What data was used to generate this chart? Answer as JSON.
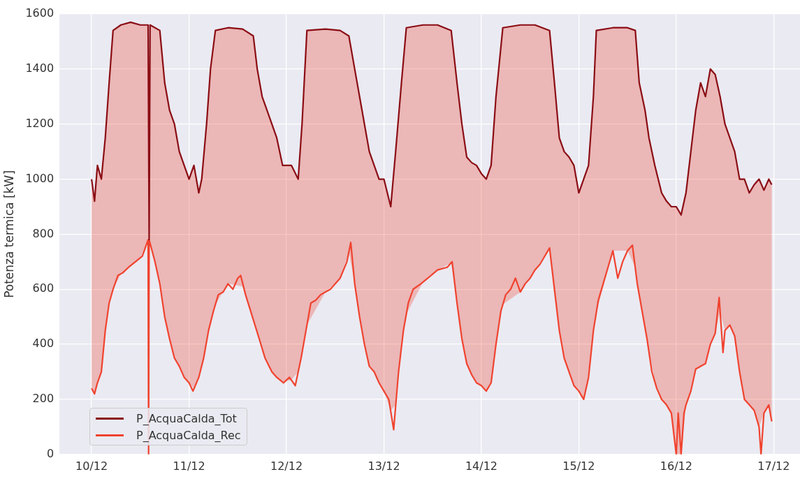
{
  "chart_data": {
    "type": "line",
    "ylabel": "Potenza termica [kW]",
    "xlim": [
      "--12-09T16:05",
      "--12-17T06:29"
    ],
    "ylim": [
      0,
      1600
    ],
    "xticks": [
      {
        "value": "--12-10",
        "label": "10/12"
      },
      {
        "value": "--12-11",
        "label": "11/12"
      },
      {
        "value": "--12-12",
        "label": "12/12"
      },
      {
        "value": "--12-13",
        "label": "13/12"
      },
      {
        "value": "--12-14",
        "label": "14/12"
      },
      {
        "value": "--12-15",
        "label": "15/12"
      },
      {
        "value": "--12-16",
        "label": "16/12"
      },
      {
        "value": "--12-17",
        "label": "17/12"
      }
    ],
    "yticks": [
      0,
      200,
      400,
      600,
      800,
      1000,
      1200,
      1400,
      1600
    ],
    "grid": true,
    "legend": "bottom left",
    "marker": "none",
    "line_style": "solid",
    "series": [
      {
        "name": "P_AcquaCalda_Tot",
        "color": "#8b0d14",
        "x": [
          "--12-10T00:00",
          "--12-10T00:43",
          "--12-10T01:26",
          "--12-10T02:24",
          "--12-10T03:22",
          "--12-10T04:19",
          "--12-10T05:17",
          "--12-10T07:12",
          "--12-10T09:36",
          "--12-10T12:00",
          "--12-10T13:55",
          "--12-10T14:10",
          "--12-10T14:24",
          "--12-10T16:48",
          "--12-10T18:00",
          "--12-10T19:12",
          "--12-10T20:24",
          "--12-10T21:36",
          "--12-10T22:48",
          "--12-11T00:00",
          "--12-11T01:12",
          "--12-11T02:24",
          "--12-11T03:07",
          "--12-11T04:19",
          "--12-11T05:17",
          "--12-11T06:29",
          "--12-11T09:36",
          "--12-11T13:12",
          "--12-11T15:50",
          "--12-11T16:48",
          "--12-11T18:00",
          "--12-11T19:12",
          "--12-11T20:24",
          "--12-11T21:36",
          "--12-11T23:02",
          "--12-12T01:12",
          "--12-12T02:53",
          "--12-12T03:50",
          "--12-12T05:02",
          "--12-12T09:36",
          "--12-12T13:12",
          "--12-12T15:22",
          "--12-12T16:48",
          "--12-12T18:00",
          "--12-12T19:12",
          "--12-12T20:24",
          "--12-12T21:36",
          "--12-12T22:48",
          "--12-13T00:00",
          "--12-13T01:41",
          "--12-13T02:53",
          "--12-13T04:19",
          "--12-13T05:31",
          "--12-13T09:36",
          "--12-13T13:12",
          "--12-13T16:34",
          "--12-13T18:00",
          "--12-13T19:12",
          "--12-13T20:24",
          "--12-13T21:36",
          "--12-13T22:48",
          "--12-14T00:00",
          "--12-14T01:12",
          "--12-14T02:24",
          "--12-14T03:36",
          "--12-14T05:17",
          "--12-14T09:36",
          "--12-14T13:12",
          "--12-14T16:48",
          "--12-14T18:00",
          "--12-14T19:12",
          "--12-14T20:24",
          "--12-14T21:36",
          "--12-14T22:48",
          "--12-15T00:00",
          "--12-15T01:12",
          "--12-15T02:24",
          "--12-15T03:36",
          "--12-15T04:19",
          "--12-15T08:24",
          "--12-15T12:00",
          "--12-15T13:55",
          "--12-15T14:53",
          "--12-15T16:19",
          "--12-15T17:17",
          "--12-15T18:43",
          "--12-15T20:24",
          "--12-15T21:36",
          "--12-15T22:48",
          "--12-16T00:00",
          "--12-16T01:12",
          "--12-16T02:24",
          "--12-16T03:36",
          "--12-16T04:48",
          "--12-16T06:00",
          "--12-16T07:12",
          "--12-16T08:24",
          "--12-16T09:36",
          "--12-16T10:48",
          "--12-16T12:00",
          "--12-16T13:12",
          "--12-16T14:24",
          "--12-16T15:36",
          "--12-16T16:48",
          "--12-16T18:00",
          "--12-16T19:12",
          "--12-16T20:24",
          "--12-16T21:36",
          "--12-16T22:48",
          "--12-16T23:31"
        ],
        "values": [
          1000,
          920,
          1050,
          1000,
          1150,
          1350,
          1540,
          1560,
          1570,
          1560,
          1560,
          780,
          1560,
          1540,
          1350,
          1250,
          1200,
          1100,
          1050,
          1000,
          1050,
          950,
          1000,
          1200,
          1400,
          1540,
          1550,
          1545,
          1520,
          1400,
          1300,
          1250,
          1200,
          1150,
          1050,
          1050,
          1000,
          1200,
          1540,
          1545,
          1540,
          1520,
          1400,
          1300,
          1200,
          1100,
          1050,
          1000,
          1000,
          900,
          1100,
          1350,
          1550,
          1560,
          1560,
          1540,
          1350,
          1200,
          1080,
          1060,
          1050,
          1020,
          1000,
          1050,
          1300,
          1550,
          1560,
          1560,
          1540,
          1350,
          1150,
          1100,
          1080,
          1050,
          950,
          1000,
          1050,
          1300,
          1540,
          1550,
          1550,
          1540,
          1350,
          1250,
          1150,
          1050,
          950,
          920,
          900,
          900,
          870,
          950,
          1100,
          1250,
          1350,
          1300,
          1400,
          1380,
          1300,
          1200,
          1150,
          1100,
          1000,
          1000,
          950,
          980,
          1000,
          960,
          1000,
          980
        ],
        "lower": [
          240,
          220,
          260,
          300,
          450,
          550,
          600,
          655,
          685,
          715,
          780,
          780,
          770,
          620,
          500,
          420,
          350,
          320,
          280,
          260,
          240,
          280,
          320,
          410,
          480,
          545,
          620,
          610,
          490,
          440,
          380,
          340,
          300,
          280,
          263,
          270,
          300,
          370,
          470,
          590,
          640,
          735,
          620,
          500,
          400,
          320,
          300,
          260,
          230,
          160,
          180,
          390,
          510,
          625,
          670,
          696,
          550,
          420,
          330,
          290,
          260,
          250,
          230,
          260,
          400,
          545,
          590,
          670,
          750,
          600,
          450,
          350,
          300,
          250,
          230,
          200,
          280,
          450,
          515,
          740,
          740,
          680,
          580,
          460,
          380,
          265,
          200,
          180,
          150,
          0,
          0,
          180,
          230,
          310,
          320,
          330,
          400,
          440,
          520,
          450,
          470,
          430,
          300,
          200,
          180,
          160,
          100,
          150,
          180,
          120
        ],
        "upper": [
          1000,
          920,
          1050,
          1000,
          1150,
          1350,
          1540,
          1560,
          1570,
          1560,
          1560,
          780,
          1560,
          1540,
          1350,
          1250,
          1200,
          1100,
          1050,
          1000,
          1050,
          950,
          1000,
          1200,
          1400,
          1540,
          1550,
          1545,
          1520,
          1400,
          1300,
          1250,
          1200,
          1150,
          1050,
          1050,
          1000,
          1200,
          1540,
          1545,
          1540,
          1520,
          1400,
          1300,
          1200,
          1100,
          1050,
          1000,
          1000,
          900,
          1100,
          1350,
          1550,
          1560,
          1560,
          1540,
          1350,
          1200,
          1080,
          1060,
          1050,
          1020,
          1000,
          1050,
          1300,
          1550,
          1560,
          1560,
          1540,
          1350,
          1150,
          1100,
          1080,
          1050,
          950,
          1000,
          1050,
          1300,
          1540,
          1550,
          1550,
          1540,
          1350,
          1250,
          1150,
          1050,
          950,
          920,
          900,
          900,
          870,
          950,
          1100,
          1250,
          1350,
          1300,
          1400,
          1380,
          1300,
          1200,
          1150,
          1100,
          1000,
          1000,
          950,
          980,
          1000,
          960,
          1000,
          980
        ]
      },
      {
        "name": "P_AcquaCalda_Rec",
        "color": "#f0432f",
        "x": [
          "--12-10T00:00",
          "--12-10T00:43",
          "--12-10T01:26",
          "--12-10T02:24",
          "--12-10T03:22",
          "--12-10T04:19",
          "--12-10T05:17",
          "--12-10T06:29",
          "--12-10T07:41",
          "--12-10T09:07",
          "--12-10T10:48",
          "--12-10T12:29",
          "--12-10T13:55",
          "--12-10T14:02",
          "--12-10T14:10",
          "--12-10T15:36",
          "--12-10T16:48",
          "--12-10T18:00",
          "--12-10T19:12",
          "--12-10T20:24",
          "--12-10T21:36",
          "--12-10T22:48",
          "--12-11T00:00",
          "--12-11T00:58",
          "--12-11T02:24",
          "--12-11T03:36",
          "--12-11T04:48",
          "--12-11T06:00",
          "--12-11T07:12",
          "--12-11T08:24",
          "--12-11T09:36",
          "--12-11T10:48",
          "--12-11T12:00",
          "--12-11T12:43",
          "--12-11T13:55",
          "--12-11T15:36",
          "--12-11T17:17",
          "--12-11T18:43",
          "--12-11T20:24",
          "--12-11T21:36",
          "--12-11T23:17",
          "--12-12T00:43",
          "--12-12T02:10",
          "--12-12T03:36",
          "--12-12T04:48",
          "--12-12T06:00",
          "--12-12T07:12",
          "--12-12T08:24",
          "--12-12T10:48",
          "--12-12T13:12",
          "--12-12T14:53",
          "--12-12T15:50",
          "--12-12T16:48",
          "--12-12T18:00",
          "--12-12T19:12",
          "--12-12T20:24",
          "--12-12T21:36",
          "--12-12T22:48",
          "--12-13T00:00",
          "--12-13T01:12",
          "--12-13T02:24",
          "--12-13T03:36",
          "--12-13T04:48",
          "--12-13T06:00",
          "--12-13T07:12",
          "--12-13T09:07",
          "--12-13T10:48",
          "--12-13T13:12",
          "--12-13T15:36",
          "--12-13T16:48",
          "--12-13T18:00",
          "--12-13T19:12",
          "--12-13T20:24",
          "--12-13T21:36",
          "--12-13T22:48",
          "--12-14T00:00",
          "--12-14T01:12",
          "--12-14T02:24",
          "--12-14T03:36",
          "--12-14T04:48",
          "--12-14T06:00",
          "--12-14T07:12",
          "--12-14T08:24",
          "--12-14T09:36",
          "--12-14T10:48",
          "--12-14T12:00",
          "--12-14T13:12",
          "--12-14T14:24",
          "--12-14T15:36",
          "--12-14T16:48",
          "--12-14T18:00",
          "--12-14T19:12",
          "--12-14T20:24",
          "--12-14T21:36",
          "--12-14T22:48",
          "--12-15T00:00",
          "--12-15T01:12",
          "--12-15T02:24",
          "--12-15T03:36",
          "--12-15T04:48",
          "--12-15T06:00",
          "--12-15T07:12",
          "--12-15T08:24",
          "--12-15T09:36",
          "--12-15T10:48",
          "--12-15T12:00",
          "--12-15T13:12",
          "--12-15T14:24",
          "--12-15T15:36",
          "--12-15T16:48",
          "--12-15T18:00",
          "--12-15T19:12",
          "--12-15T20:24",
          "--12-15T21:36",
          "--12-15T22:48",
          "--12-16T00:00",
          "--12-16T00:29",
          "--12-16T01:12",
          "--12-16T01:55",
          "--12-16T02:24",
          "--12-16T03:36",
          "--12-16T04:48",
          "--12-16T07:12",
          "--12-16T08:24",
          "--12-16T09:36",
          "--12-16T10:34",
          "--12-16T11:31",
          "--12-16T12:00",
          "--12-16T13:12",
          "--12-16T14:24",
          "--12-16T15:36",
          "--12-16T16:48",
          "--12-16T18:00",
          "--12-16T19:12",
          "--12-16T20:24",
          "--12-16T20:53",
          "--12-16T21:36",
          "--12-16T22:48",
          "--12-16T23:31"
        ],
        "values": [
          240,
          220,
          260,
          300,
          450,
          550,
          600,
          650,
          660,
          680,
          700,
          720,
          780,
          0,
          780,
          700,
          620,
          500,
          420,
          350,
          320,
          280,
          260,
          230,
          280,
          350,
          450,
          520,
          580,
          590,
          620,
          600,
          640,
          650,
          580,
          500,
          420,
          350,
          300,
          280,
          260,
          280,
          250,
          350,
          450,
          550,
          560,
          580,
          600,
          640,
          700,
          770,
          620,
          500,
          400,
          320,
          300,
          260,
          230,
          200,
          90,
          300,
          450,
          550,
          600,
          620,
          640,
          670,
          680,
          700,
          550,
          420,
          330,
          290,
          260,
          250,
          230,
          260,
          400,
          520,
          580,
          600,
          640,
          590,
          620,
          640,
          670,
          690,
          720,
          750,
          600,
          450,
          350,
          300,
          250,
          230,
          200,
          280,
          450,
          560,
          620,
          680,
          740,
          640,
          700,
          740,
          760,
          620,
          520,
          420,
          300,
          240,
          200,
          180,
          150,
          0,
          150,
          0,
          150,
          180,
          230,
          310,
          330,
          400,
          440,
          570,
          370,
          450,
          470,
          430,
          300,
          200,
          180,
          160,
          100,
          0,
          150,
          180,
          120
        ]
      }
    ]
  }
}
